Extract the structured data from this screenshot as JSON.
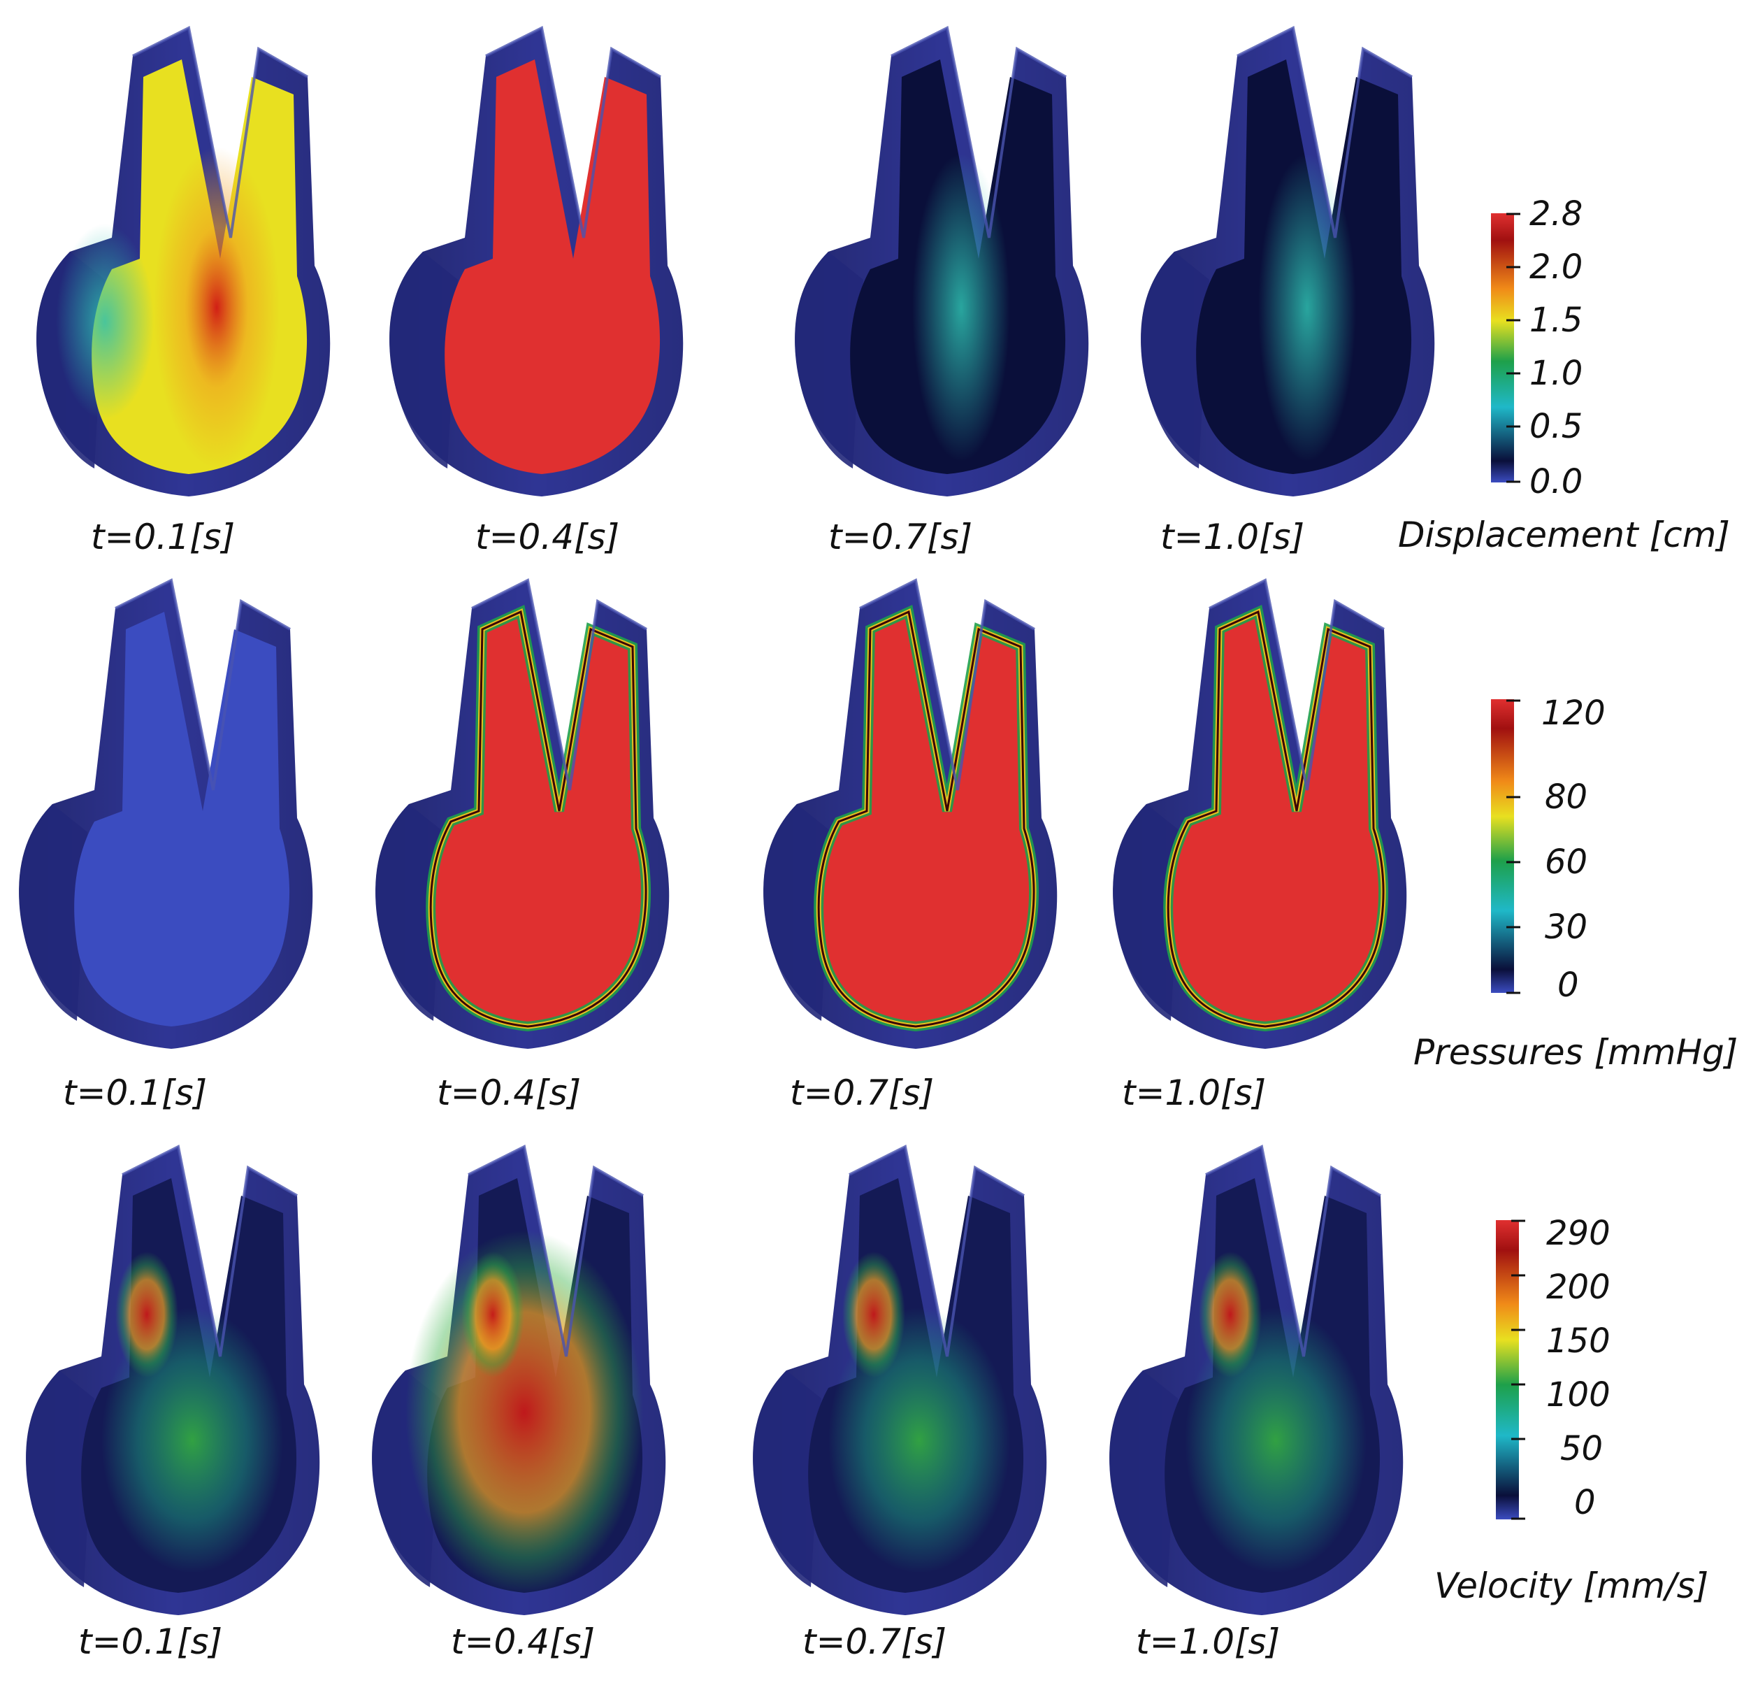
{
  "rows": [
    {
      "quantity": "displacement",
      "colorbar": {
        "title": "Displacement [cm]",
        "ticks": [
          "2.8",
          "2.0",
          "1.5",
          "1.0",
          "0.5",
          "0.0"
        ]
      },
      "panels": [
        {
          "time_label": "t=0.1[s]",
          "level": 0.55
        },
        {
          "time_label": "t=0.4[s]",
          "level": 0.95
        },
        {
          "time_label": "t=0.7[s]",
          "level": 0.15
        },
        {
          "time_label": "t=1.0[s]",
          "level": 0.1
        }
      ]
    },
    {
      "quantity": "pressure",
      "colorbar": {
        "title": "Pressures [mmHg]",
        "ticks": [
          "120",
          "80",
          "60",
          "30",
          "0"
        ]
      },
      "panels": [
        {
          "time_label": "t=0.1[s]",
          "level": 0.03
        },
        {
          "time_label": "t=0.4[s]",
          "level": 0.97
        },
        {
          "time_label": "t=0.7[s]",
          "level": 0.96
        },
        {
          "time_label": "t=1.0[s]",
          "level": 0.93
        }
      ]
    },
    {
      "quantity": "velocity",
      "colorbar": {
        "title": "Velocity [mm/s]",
        "ticks": [
          "290",
          "200",
          "150",
          "100",
          "50",
          "0"
        ]
      },
      "panels": [
        {
          "time_label": "t=0.1[s]",
          "level": 0.25
        },
        {
          "time_label": "t=0.4[s]",
          "level": 0.85
        },
        {
          "time_label": "t=0.7[s]",
          "level": 0.5
        },
        {
          "time_label": "t=1.0[s]",
          "level": 0.4
        }
      ]
    }
  ],
  "colormap": [
    "#3b4cc0",
    "#0a0f3a",
    "#1fb8c8",
    "#1ea04a",
    "#e8e020",
    "#f08a18",
    "#a01010",
    "#e03030"
  ],
  "colors": {
    "wall": "#2f3594",
    "wall_dark": "#22287a",
    "background": "#ffffff"
  }
}
